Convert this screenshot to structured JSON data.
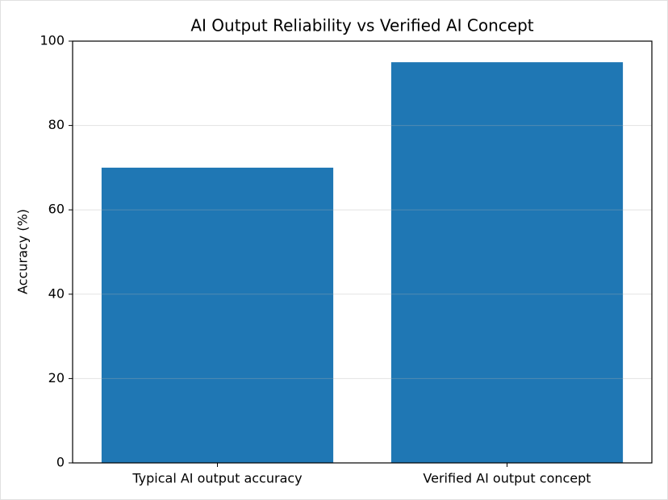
{
  "chart_data": {
    "type": "bar",
    "title": "AI Output Reliability vs Verified AI Concept",
    "ylabel": "Accuracy (%)",
    "categories": [
      "Typical AI output accuracy",
      "Verified AI output concept"
    ],
    "values": [
      70,
      95
    ],
    "color": "#1f77b4",
    "ylim": [
      0,
      100
    ],
    "yticks": [
      0,
      20,
      40,
      60,
      80,
      100
    ],
    "grid": true
  }
}
